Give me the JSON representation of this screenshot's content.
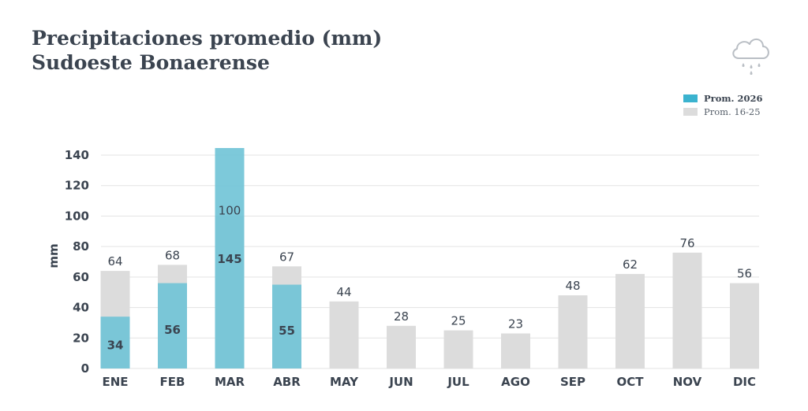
{
  "header": {
    "title_line1": "Precipitaciones promedio (mm)",
    "title_line2": "Sudoeste Bonaerense",
    "icon": "cloud-rain-icon"
  },
  "legend": {
    "current_label": "Prom. 2026",
    "historical_label": "Prom. 16-25"
  },
  "colors": {
    "current": "#6fc3d6",
    "current_legend": "#3bb3cf",
    "historical": "#dcdcdc",
    "text": "#3b4450",
    "grid": "#e3e3e3"
  },
  "chart_data": {
    "type": "bar",
    "title": "Precipitaciones promedio (mm) Sudoeste Bonaerense",
    "xlabel": "",
    "ylabel": "mm",
    "ylim": [
      0,
      140
    ],
    "yticks": [
      0,
      20,
      40,
      60,
      80,
      100,
      120,
      140
    ],
    "grid": true,
    "legend_position": "top-right",
    "categories": [
      "ENE",
      "FEB",
      "MAR",
      "ABR",
      "MAY",
      "JUN",
      "JUL",
      "AGO",
      "SEP",
      "OCT",
      "NOV",
      "DIC"
    ],
    "series": [
      {
        "name": "Prom. 16-25",
        "values": [
          64,
          68,
          100,
          67,
          44,
          28,
          25,
          23,
          48,
          62,
          76,
          56
        ]
      },
      {
        "name": "Prom. 2026",
        "values": [
          34,
          56,
          145,
          55,
          null,
          null,
          null,
          null,
          null,
          null,
          null,
          null
        ]
      }
    ]
  }
}
